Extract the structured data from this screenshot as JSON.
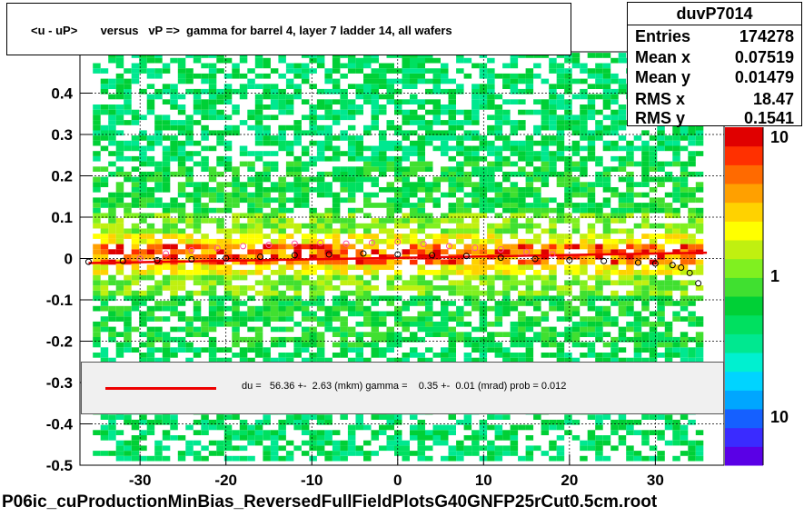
{
  "title": "<u - uP>       versus   vP =>  gamma for barrel 4, layer 7 ladder 14, all wafers",
  "stats": {
    "name": "duvP7014",
    "rows": [
      {
        "key": "Entries",
        "value": "174278"
      },
      {
        "key": "Mean x",
        "value": "0.07519"
      },
      {
        "key": "Mean y",
        "value": "0.01479"
      },
      {
        "key": "RMS x",
        "value": "18.47"
      },
      {
        "key": "RMS y",
        "value": "0.1541"
      }
    ]
  },
  "fit_text": "du =   56.36 +-  2.63 (mkm) gamma =    0.35 +-  0.01 (mrad) prob = 0.012",
  "footer": "P06ic_cuProductionMinBias_ReversedFullFieldPlotsG40GNFP25rCut0.5cm.root",
  "colors": {
    "fit_line": "#ee0000",
    "mean_points": "#000000",
    "alt_points": "#ff4fa0",
    "palette": [
      "#5a00e6",
      "#3a2bff",
      "#1560ff",
      "#00a6ff",
      "#00d4ff",
      "#00f0d0",
      "#00e890",
      "#00e060",
      "#00d036",
      "#40e030",
      "#80f020",
      "#c0f010",
      "#ffff00",
      "#ffd200",
      "#ffa000",
      "#ff6a00",
      "#ff3000",
      "#e00000"
    ]
  },
  "chart_data": {
    "type": "heatmap",
    "xlim": [
      -37,
      38
    ],
    "ylim": [
      -0.5,
      0.5
    ],
    "x_ticks": [
      -30,
      -20,
      -10,
      0,
      10,
      20,
      30
    ],
    "y_ticks": [
      -0.5,
      -0.4,
      -0.3,
      -0.2,
      -0.1,
      0,
      0.1,
      0.2,
      0.3,
      0.4
    ],
    "x_tick_labels": [
      "-30",
      "-20",
      "-10",
      "0",
      "10",
      "20",
      "30"
    ],
    "y_tick_labels": [
      "-0.5",
      "-0.4",
      "-0.3",
      "-0.2",
      "-0.1",
      "0",
      "0.1",
      "0.2",
      "0.3",
      "0.4"
    ],
    "grid": true,
    "z_scale": "log",
    "z_tick_labels": [
      "10",
      "1",
      "10"
    ],
    "fit_line": {
      "x": [
        -36,
        36
      ],
      "y": [
        -0.011,
        0.014
      ]
    },
    "mean_profile": {
      "x": [
        -36,
        -32,
        -28,
        -24,
        -20,
        -16,
        -12,
        -8,
        -4,
        0,
        4,
        8,
        12,
        16,
        20,
        24,
        28,
        30,
        32,
        33,
        34,
        35
      ],
      "y": [
        -0.008,
        -0.006,
        -0.004,
        -0.002,
        0.001,
        0.004,
        0.008,
        0.01,
        0.012,
        0.01,
        0.008,
        0.006,
        0.002,
        -0.001,
        -0.004,
        -0.006,
        -0.01,
        -0.012,
        -0.016,
        -0.022,
        -0.035,
        -0.06
      ]
    },
    "alt_profile": {
      "x": [
        -30,
        -27,
        -24,
        -21,
        -18,
        -15,
        -12,
        -9,
        -6,
        -3,
        0,
        3,
        6,
        9,
        12,
        15,
        18
      ],
      "y": [
        0.0,
        0.012,
        0.02,
        0.025,
        0.03,
        0.033,
        0.036,
        0.038,
        0.036,
        0.038,
        0.04,
        0.035,
        0.03,
        0.026,
        0.022,
        0.016,
        0.01
      ]
    }
  }
}
